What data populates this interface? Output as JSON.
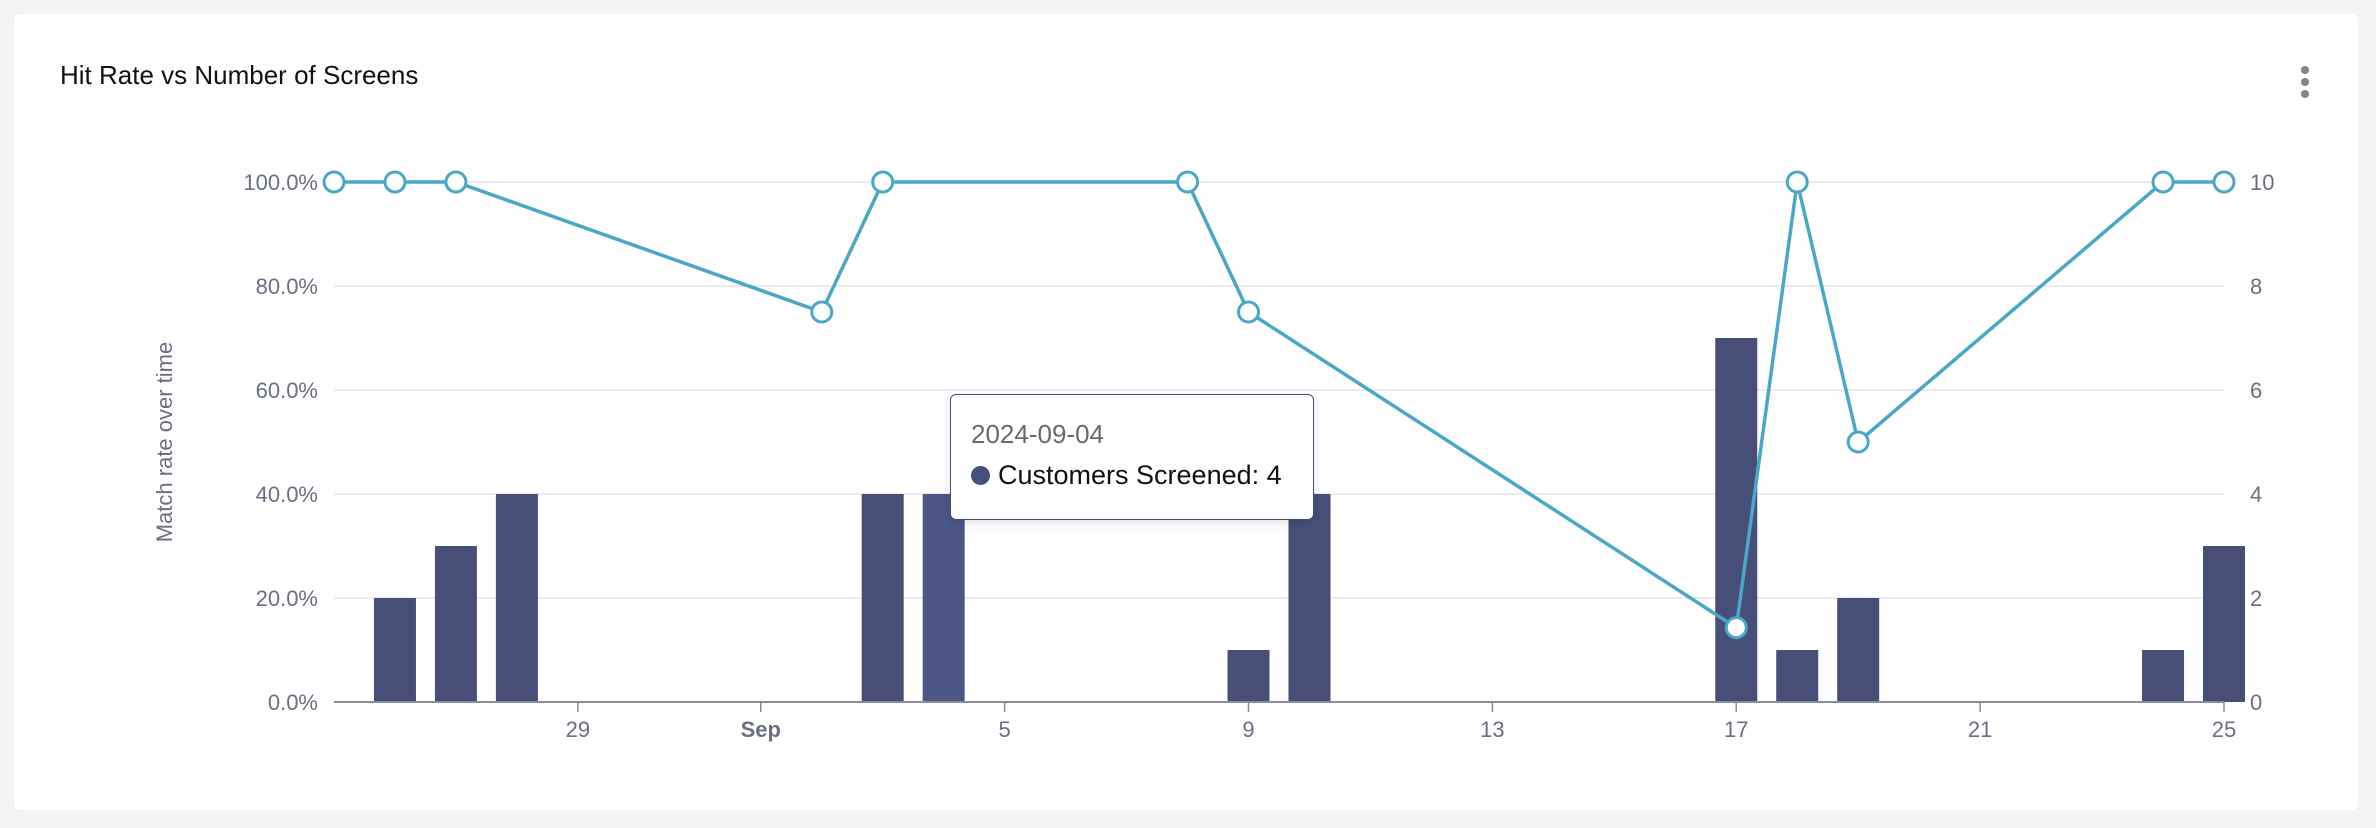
{
  "card": {
    "title": "Hit Rate vs Number of Screens"
  },
  "colors": {
    "bar": "#474f78",
    "bar_highlight": "#4c5687",
    "line": "#4ca6c6",
    "grid": "#e3e6ef",
    "axis_text": "#6b7080"
  },
  "tooltip": {
    "date": "2024-09-04",
    "label": "Customers Screened: 4",
    "dot_color": "#474f78"
  },
  "chart_data": {
    "type": "bar+line",
    "title": "",
    "ylabel_left": "Match rate over time",
    "ylim_left": [
      0,
      100
    ],
    "yticks_left": [
      "0.0%",
      "20.0%",
      "40.0%",
      "60.0%",
      "80.0%",
      "100.0%"
    ],
    "ylim_right": [
      0,
      10
    ],
    "yticks_right": [
      "0",
      "2",
      "4",
      "6",
      "8",
      "10"
    ],
    "xlim": [
      "2024-08-25",
      "2024-09-25"
    ],
    "xticks": [
      {
        "date": "2024-08-29",
        "label": "29",
        "bold": false
      },
      {
        "date": "2024-09-01",
        "label": "Sep",
        "bold": true
      },
      {
        "date": "2024-09-05",
        "label": "5",
        "bold": false
      },
      {
        "date": "2024-09-09",
        "label": "9",
        "bold": false
      },
      {
        "date": "2024-09-13",
        "label": "13",
        "bold": false
      },
      {
        "date": "2024-09-17",
        "label": "17",
        "bold": false
      },
      {
        "date": "2024-09-21",
        "label": "21",
        "bold": false
      },
      {
        "date": "2024-09-25",
        "label": "25",
        "bold": false
      }
    ],
    "series": [
      {
        "name": "Customers Screened",
        "type": "bar",
        "axis": "right",
        "x": [
          "2024-08-26",
          "2024-08-27",
          "2024-08-28",
          "2024-09-03",
          "2024-09-04",
          "2024-09-09",
          "2024-09-10",
          "2024-09-17",
          "2024-09-18",
          "2024-09-19",
          "2024-09-24",
          "2024-09-25"
        ],
        "values": [
          2,
          3,
          4,
          4,
          4,
          1,
          4,
          7,
          1,
          2,
          1,
          3
        ]
      },
      {
        "type": "line",
        "axis": "left",
        "x": [
          "2024-08-25",
          "2024-08-26",
          "2024-08-27",
          "2024-09-02",
          "2024-09-03",
          "2024-09-08",
          "2024-09-09",
          "2024-09-17",
          "2024-09-18",
          "2024-09-19",
          "2024-09-24",
          "2024-09-25"
        ],
        "values": [
          100,
          100,
          100,
          75,
          100,
          100,
          75,
          14.3,
          100,
          50,
          100,
          100
        ]
      }
    ],
    "highlight": "2024-09-04"
  }
}
